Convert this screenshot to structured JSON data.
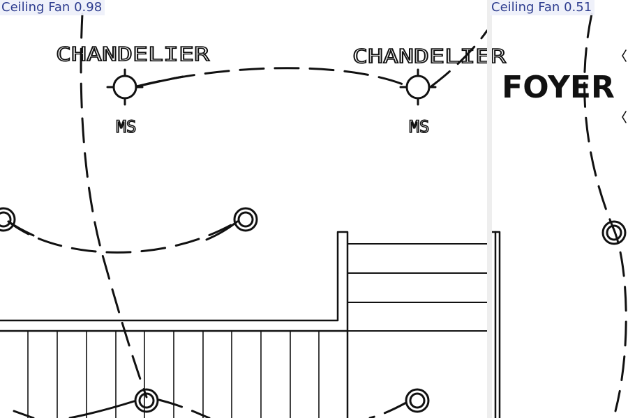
{
  "detections": [
    {
      "label": "Ceiling Fan",
      "score": "0.98"
    },
    {
      "label": "Ceiling Fan",
      "score": "0.51"
    }
  ],
  "plan": {
    "fixture_left": {
      "name": "CHANDELIER",
      "switch": "MS"
    },
    "fixture_right": {
      "name": "CHANDELIER",
      "switch": "MS"
    },
    "room_label": "FOYER"
  },
  "colors": {
    "detection_label": "#2e3d8f",
    "detection_label_bg": "#eef0fa",
    "linework": "#111111"
  }
}
